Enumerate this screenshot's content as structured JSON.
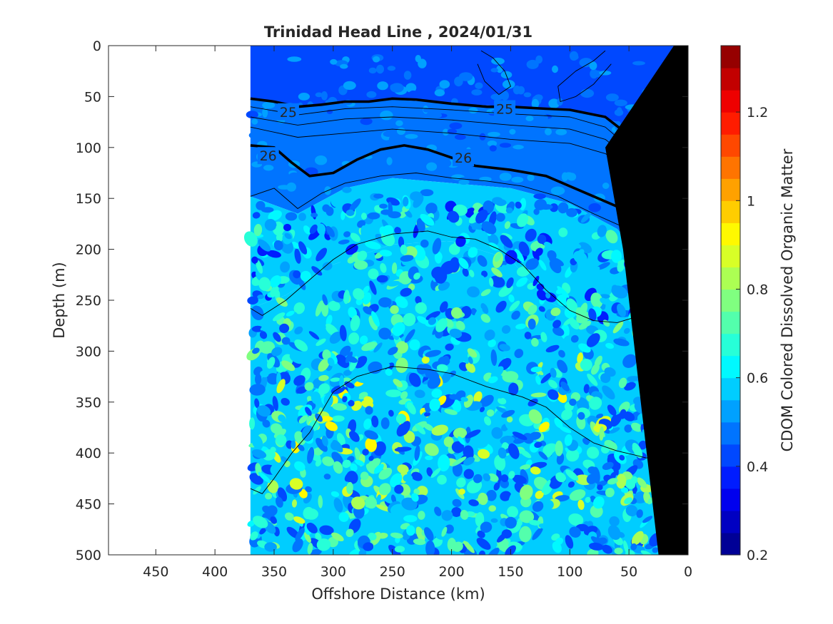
{
  "chart_data": {
    "type": "heatmap",
    "title": "Trinidad Head Line , 2024/01/31",
    "xlabel": "Offshore Distance (km)",
    "ylabel": "Depth (m)",
    "colorbar_label": "CDOM Colored Dissolved Organic Matter",
    "xlim": [
      490,
      0
    ],
    "ylim": [
      500,
      0
    ],
    "x_ticks": [
      450,
      400,
      350,
      300,
      250,
      200,
      150,
      100,
      50,
      0
    ],
    "y_ticks": [
      0,
      50,
      100,
      150,
      200,
      250,
      300,
      350,
      400,
      450,
      500
    ],
    "clim": [
      0.2,
      1.35
    ],
    "colorbar_ticks": [
      0.2,
      0.4,
      0.6,
      0.8,
      1,
      1.2
    ],
    "colorbar_levels": 23,
    "data_extent_x": [
      370,
      10
    ],
    "grid": false,
    "bands": [
      {
        "name": "surface",
        "level": 0.41,
        "top": [
          [
            370,
            0
          ],
          [
            10,
            0
          ]
        ],
        "bottom": [
          [
            370,
            52
          ],
          [
            330,
            60
          ],
          [
            250,
            53
          ],
          [
            150,
            60
          ],
          [
            100,
            62
          ],
          [
            60,
            75
          ],
          [
            40,
            98
          ],
          [
            20,
            85
          ],
          [
            10,
            72
          ]
        ]
      },
      {
        "name": "upper",
        "level": 0.47,
        "top": [
          [
            370,
            52
          ],
          [
            330,
            60
          ],
          [
            250,
            53
          ],
          [
            150,
            60
          ],
          [
            100,
            62
          ],
          [
            60,
            75
          ],
          [
            40,
            98
          ],
          [
            20,
            85
          ],
          [
            10,
            72
          ]
        ],
        "bottom": [
          [
            370,
            148
          ],
          [
            330,
            165
          ],
          [
            290,
            140
          ],
          [
            250,
            130
          ],
          [
            200,
            135
          ],
          [
            150,
            140
          ],
          [
            100,
            155
          ],
          [
            60,
            180
          ],
          [
            40,
            205
          ],
          [
            20,
            168
          ],
          [
            12,
            130
          ]
        ]
      },
      {
        "name": "mid",
        "level": 0.55,
        "top": [
          [
            370,
            148
          ],
          [
            330,
            165
          ],
          [
            290,
            140
          ],
          [
            250,
            130
          ],
          [
            200,
            135
          ],
          [
            150,
            140
          ],
          [
            100,
            155
          ],
          [
            60,
            180
          ],
          [
            40,
            205
          ],
          [
            20,
            168
          ],
          [
            12,
            130
          ]
        ],
        "bottom": [
          [
            370,
            258
          ],
          [
            340,
            245
          ],
          [
            300,
            215
          ],
          [
            250,
            195
          ],
          [
            200,
            192
          ],
          [
            150,
            210
          ],
          [
            120,
            250
          ],
          [
            90,
            268
          ],
          [
            60,
            275
          ],
          [
            30,
            255
          ],
          [
            20,
            250
          ]
        ]
      },
      {
        "name": "deep",
        "level": 0.6,
        "top": [
          [
            370,
            258
          ],
          [
            340,
            245
          ],
          [
            300,
            215
          ],
          [
            250,
            195
          ],
          [
            200,
            192
          ],
          [
            150,
            210
          ],
          [
            120,
            250
          ],
          [
            90,
            268
          ],
          [
            60,
            275
          ],
          [
            30,
            255
          ],
          [
            20,
            250
          ]
        ],
        "bottom": [
          [
            370,
            500
          ],
          [
            25,
            500
          ]
        ]
      }
    ],
    "density_contours": [
      {
        "label": "25",
        "bold": true,
        "points": [
          [
            370,
            52
          ],
          [
            350,
            55
          ],
          [
            330,
            60
          ],
          [
            310,
            58
          ],
          [
            290,
            55
          ],
          [
            270,
            55
          ],
          [
            250,
            52
          ],
          [
            230,
            53
          ],
          [
            200,
            57
          ],
          [
            170,
            60
          ],
          [
            150,
            60
          ],
          [
            120,
            62
          ],
          [
            100,
            63
          ],
          [
            70,
            70
          ],
          [
            50,
            88
          ],
          [
            40,
            97
          ],
          [
            25,
            90
          ],
          [
            12,
            75
          ]
        ],
        "label_at": [
          [
            338,
            65
          ],
          [
            155,
            62
          ]
        ]
      },
      {
        "label": "26",
        "bold": true,
        "points": [
          [
            370,
            98
          ],
          [
            350,
            100
          ],
          [
            335,
            115
          ],
          [
            320,
            128
          ],
          [
            300,
            125
          ],
          [
            280,
            112
          ],
          [
            260,
            102
          ],
          [
            240,
            98
          ],
          [
            220,
            102
          ],
          [
            200,
            110
          ],
          [
            180,
            118
          ],
          [
            150,
            122
          ],
          [
            120,
            128
          ],
          [
            100,
            138
          ],
          [
            80,
            148
          ],
          [
            60,
            158
          ],
          [
            45,
            168
          ],
          [
            35,
            165
          ],
          [
            25,
            150
          ],
          [
            15,
            130
          ],
          [
            8,
            110
          ]
        ],
        "label_at": [
          [
            355,
            108
          ],
          [
            190,
            110
          ],
          [
            28,
            150
          ]
        ]
      },
      {
        "label": "",
        "bold": false,
        "points": [
          [
            370,
            60
          ],
          [
            330,
            68
          ],
          [
            290,
            62
          ],
          [
            250,
            60
          ],
          [
            200,
            63
          ],
          [
            150,
            67
          ],
          [
            100,
            70
          ],
          [
            70,
            80
          ],
          [
            45,
            105
          ],
          [
            25,
            98
          ],
          [
            10,
            80
          ]
        ]
      },
      {
        "label": "",
        "bold": false,
        "points": [
          [
            370,
            70
          ],
          [
            330,
            78
          ],
          [
            290,
            72
          ],
          [
            250,
            70
          ],
          [
            200,
            73
          ],
          [
            150,
            78
          ],
          [
            100,
            82
          ],
          [
            70,
            92
          ],
          [
            45,
            115
          ],
          [
            25,
            108
          ],
          [
            10,
            90
          ]
        ]
      },
      {
        "label": "",
        "bold": false,
        "points": [
          [
            370,
            80
          ],
          [
            330,
            90
          ],
          [
            290,
            86
          ],
          [
            250,
            82
          ],
          [
            200,
            86
          ],
          [
            150,
            92
          ],
          [
            100,
            96
          ],
          [
            70,
            106
          ],
          [
            45,
            125
          ],
          [
            25,
            118
          ],
          [
            10,
            100
          ]
        ]
      },
      {
        "label": "",
        "bold": false,
        "points": [
          [
            370,
            148
          ],
          [
            350,
            140
          ],
          [
            330,
            160
          ],
          [
            310,
            145
          ],
          [
            290,
            135
          ],
          [
            260,
            128
          ],
          [
            230,
            125
          ],
          [
            200,
            130
          ],
          [
            170,
            133
          ],
          [
            140,
            138
          ],
          [
            110,
            148
          ],
          [
            80,
            165
          ],
          [
            55,
            178
          ],
          [
            40,
            190
          ],
          [
            25,
            178
          ],
          [
            12,
            140
          ]
        ]
      },
      {
        "label": "",
        "bold": false,
        "points": [
          [
            370,
            258
          ],
          [
            360,
            265
          ],
          [
            340,
            250
          ],
          [
            320,
            230
          ],
          [
            300,
            210
          ],
          [
            280,
            195
          ],
          [
            250,
            185
          ],
          [
            220,
            182
          ],
          [
            200,
            188
          ],
          [
            180,
            190
          ],
          [
            160,
            200
          ],
          [
            140,
            215
          ],
          [
            120,
            240
          ],
          [
            100,
            260
          ],
          [
            80,
            270
          ],
          [
            60,
            272
          ],
          [
            40,
            265
          ],
          [
            28,
            258
          ],
          [
            20,
            260
          ]
        ]
      },
      {
        "label": "",
        "bold": false,
        "points": [
          [
            370,
            435
          ],
          [
            360,
            440
          ],
          [
            350,
            425
          ],
          [
            335,
            400
          ],
          [
            320,
            380
          ],
          [
            300,
            340
          ],
          [
            280,
            325
          ],
          [
            250,
            315
          ],
          [
            220,
            318
          ],
          [
            200,
            322
          ],
          [
            170,
            335
          ],
          [
            140,
            345
          ],
          [
            120,
            355
          ],
          [
            100,
            375
          ],
          [
            80,
            390
          ],
          [
            60,
            398
          ],
          [
            45,
            402
          ],
          [
            35,
            405
          ],
          [
            28,
            400
          ]
        ]
      },
      {
        "label": "",
        "bold": false,
        "points": [
          [
            175,
            5
          ],
          [
            165,
            12
          ],
          [
            155,
            25
          ],
          [
            150,
            40
          ],
          [
            160,
            48
          ],
          [
            172,
            35
          ],
          [
            178,
            18
          ]
        ]
      },
      {
        "label": "",
        "bold": false,
        "points": [
          [
            70,
            5
          ],
          [
            80,
            15
          ],
          [
            95,
            25
          ],
          [
            110,
            40
          ],
          [
            108,
            55
          ],
          [
            95,
            50
          ],
          [
            80,
            38
          ],
          [
            65,
            18
          ]
        ]
      }
    ],
    "bathymetry": [
      [
        12,
        0
      ],
      [
        0,
        0
      ],
      [
        0,
        500
      ],
      [
        25,
        500
      ],
      [
        35,
        400
      ],
      [
        45,
        300
      ],
      [
        55,
        200
      ],
      [
        70,
        100
      ],
      [
        12,
        0
      ]
    ]
  }
}
